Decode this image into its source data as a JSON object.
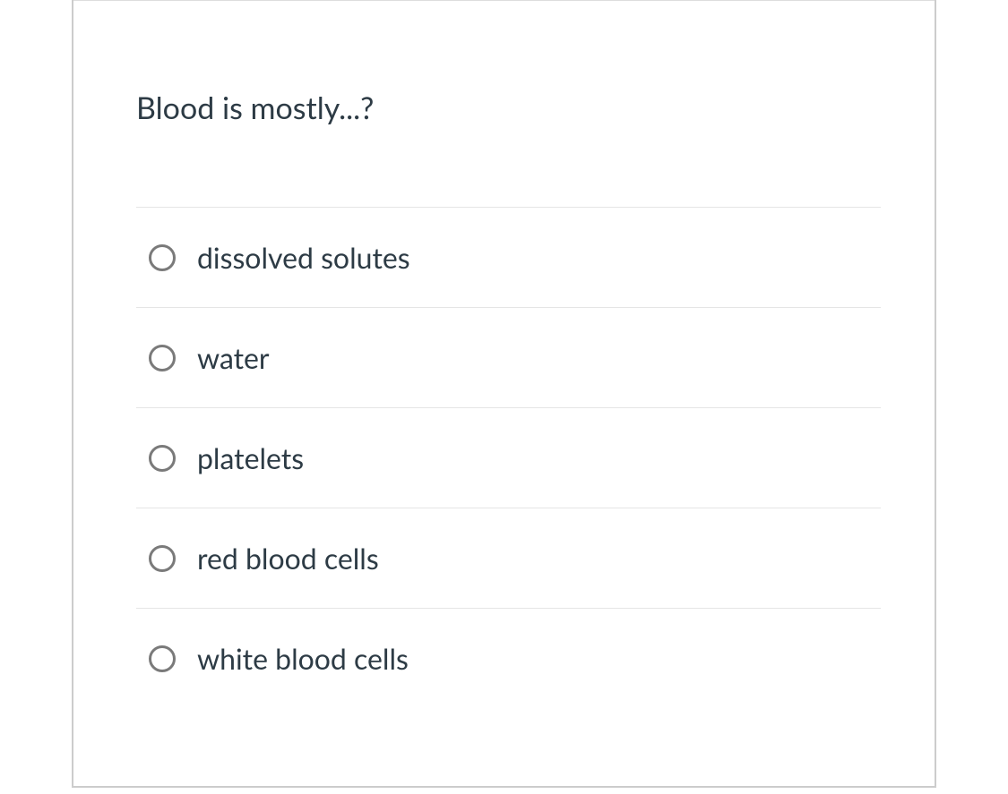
{
  "question": {
    "text": "Blood is mostly...?",
    "options": [
      {
        "label": "dissolved solutes"
      },
      {
        "label": "water"
      },
      {
        "label": "platelets"
      },
      {
        "label": "red blood cells"
      },
      {
        "label": "white blood cells"
      }
    ]
  },
  "colors": {
    "text": "#2d3b45",
    "border": "#cccccc",
    "divider": "#e5e5e5",
    "radio_border": "#7a7a7a",
    "background": "#ffffff"
  }
}
